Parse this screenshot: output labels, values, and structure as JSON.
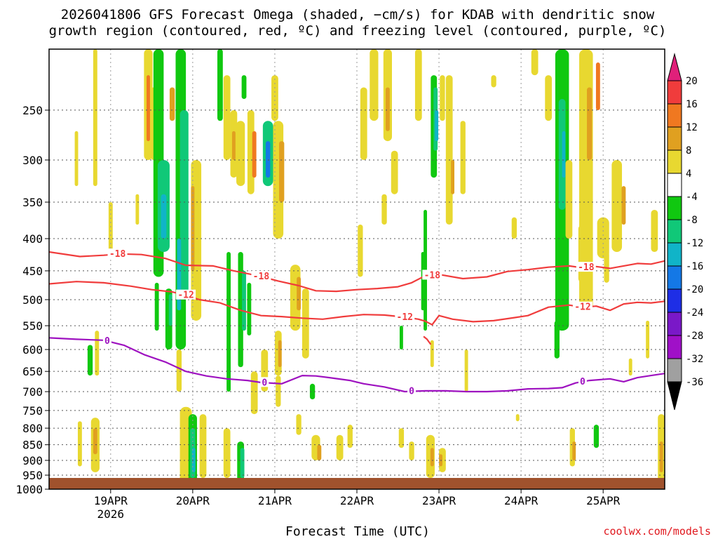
{
  "title_line1": "2026041806 GFS Forecast Omega (shaded, −cm/s) for KDAB with dendritic snow",
  "title_line2": "growth region (contoured, red, ºC) and freezing level (contoured, purple, ºC)",
  "x_axis_label": "Forecast Time (UTC)",
  "credit": "coolwx.com/models",
  "chart_data": {
    "type": "heatmap",
    "y_axis": {
      "unit": "hPa",
      "scale": "log",
      "inverted": true,
      "range": [
        200,
        1000
      ],
      "ticks": [
        "250",
        "300",
        "350",
        "400",
        "450",
        "500",
        "550",
        "600",
        "650",
        "700",
        "750",
        "800",
        "850",
        "900",
        "950",
        "1000"
      ]
    },
    "x_axis": {
      "ticks": [
        {
          "label": "19APR",
          "sub": "2026",
          "t": 18
        },
        {
          "label": "20APR",
          "sub": "",
          "t": 42
        },
        {
          "label": "21APR",
          "sub": "",
          "t": 66
        },
        {
          "label": "22APR",
          "sub": "",
          "t": 90
        },
        {
          "label": "23APR",
          "sub": "",
          "t": 114
        },
        {
          "label": "24APR",
          "sub": "",
          "t": 138
        },
        {
          "label": "25APR",
          "sub": "",
          "t": 162
        }
      ],
      "range_hours": [
        0,
        180
      ]
    },
    "grid": "dotted",
    "colorbar": {
      "labels": [
        "20",
        "16",
        "12",
        "8",
        "4",
        "-4",
        "-8",
        "-12",
        "-16",
        "-20",
        "-24",
        "-28",
        "-32",
        "-36"
      ],
      "colors": {
        "mag": "#e0207a",
        "16_20": "#f03c3c",
        "12_16": "#f07820",
        "8_12": "#e0a020",
        "4_8": "#e8d830",
        "m4_4": "#ffffff",
        "m8_m4": "#10c810",
        "m12_m8": "#10c878",
        "m16_m12": "#10b4c8",
        "m20_m16": "#1478e6",
        "m24_m20": "#1e2ee6",
        "m28_m24": "#7a18c8",
        "m32_m28": "#a010c8",
        "m36_m32": "#a0a0a0",
        "low": "#000000"
      }
    },
    "series": [
      {
        "name": "-18",
        "color": "#f03c3c",
        "x": [
          0,
          9,
          16,
          21,
          27,
          34,
          40,
          48,
          54,
          61,
          67,
          73,
          78,
          84,
          90,
          96,
          102,
          106,
          110,
          115,
          121,
          128,
          134,
          140,
          146,
          152,
          156,
          160,
          164,
          168,
          172,
          176,
          180
        ],
        "y": [
          420,
          427,
          425,
          423,
          424,
          430,
          441,
          442,
          450,
          458,
          467,
          475,
          484,
          485,
          482,
          480,
          477,
          470,
          458,
          457,
          463,
          460,
          451,
          448,
          444,
          442,
          445,
          443,
          446,
          442,
          438,
          439,
          434
        ],
        "labels_at": [
          20,
          62,
          112,
          157
        ]
      },
      {
        "name": "-12",
        "color": "#f03c3c",
        "x": [
          0,
          8,
          16,
          24,
          30,
          36,
          40,
          44,
          50,
          56,
          62,
          68,
          74,
          80,
          86,
          92,
          98,
          104,
          108,
          110,
          112,
          114,
          118,
          124,
          130,
          136,
          140,
          146,
          152,
          156,
          160,
          164,
          168,
          172,
          176,
          180
        ],
        "y": [
          472,
          468,
          470,
          476,
          482,
          486,
          492,
          500,
          506,
          520,
          530,
          532,
          535,
          537,
          532,
          528,
          529,
          533,
          537,
          541,
          548,
          530,
          537,
          542,
          540,
          534,
          530,
          514,
          510,
          514,
          512,
          520,
          508,
          505,
          506,
          503
        ],
        "labels_at": [
          40,
          104,
          156
        ]
      },
      {
        "name": "-12 pocket",
        "color": "#f03c3c",
        "x": [
          109.5,
          110.5,
          111.5,
          110.5,
          109.5
        ],
        "y": [
          572,
          578,
          588,
          578,
          572
        ],
        "labels_at": []
      },
      {
        "name": "0",
        "color": "#9e12c0",
        "x": [
          0,
          8,
          16,
          22,
          28,
          34,
          40,
          46,
          52,
          58,
          62,
          68,
          74,
          78,
          82,
          88,
          92,
          98,
          104,
          110,
          116,
          122,
          128,
          134,
          140,
          146,
          150,
          154,
          158,
          164,
          168,
          172,
          176,
          180
        ],
        "y": [
          575,
          578,
          580,
          591,
          612,
          628,
          650,
          661,
          668,
          672,
          677,
          680,
          660,
          661,
          665,
          672,
          680,
          688,
          700,
          698,
          698,
          700,
          700,
          698,
          693,
          692,
          690,
          678,
          672,
          668,
          675,
          665,
          660,
          655
        ],
        "labels_at": [
          17,
          63,
          106,
          156
        ]
      }
    ]
  }
}
